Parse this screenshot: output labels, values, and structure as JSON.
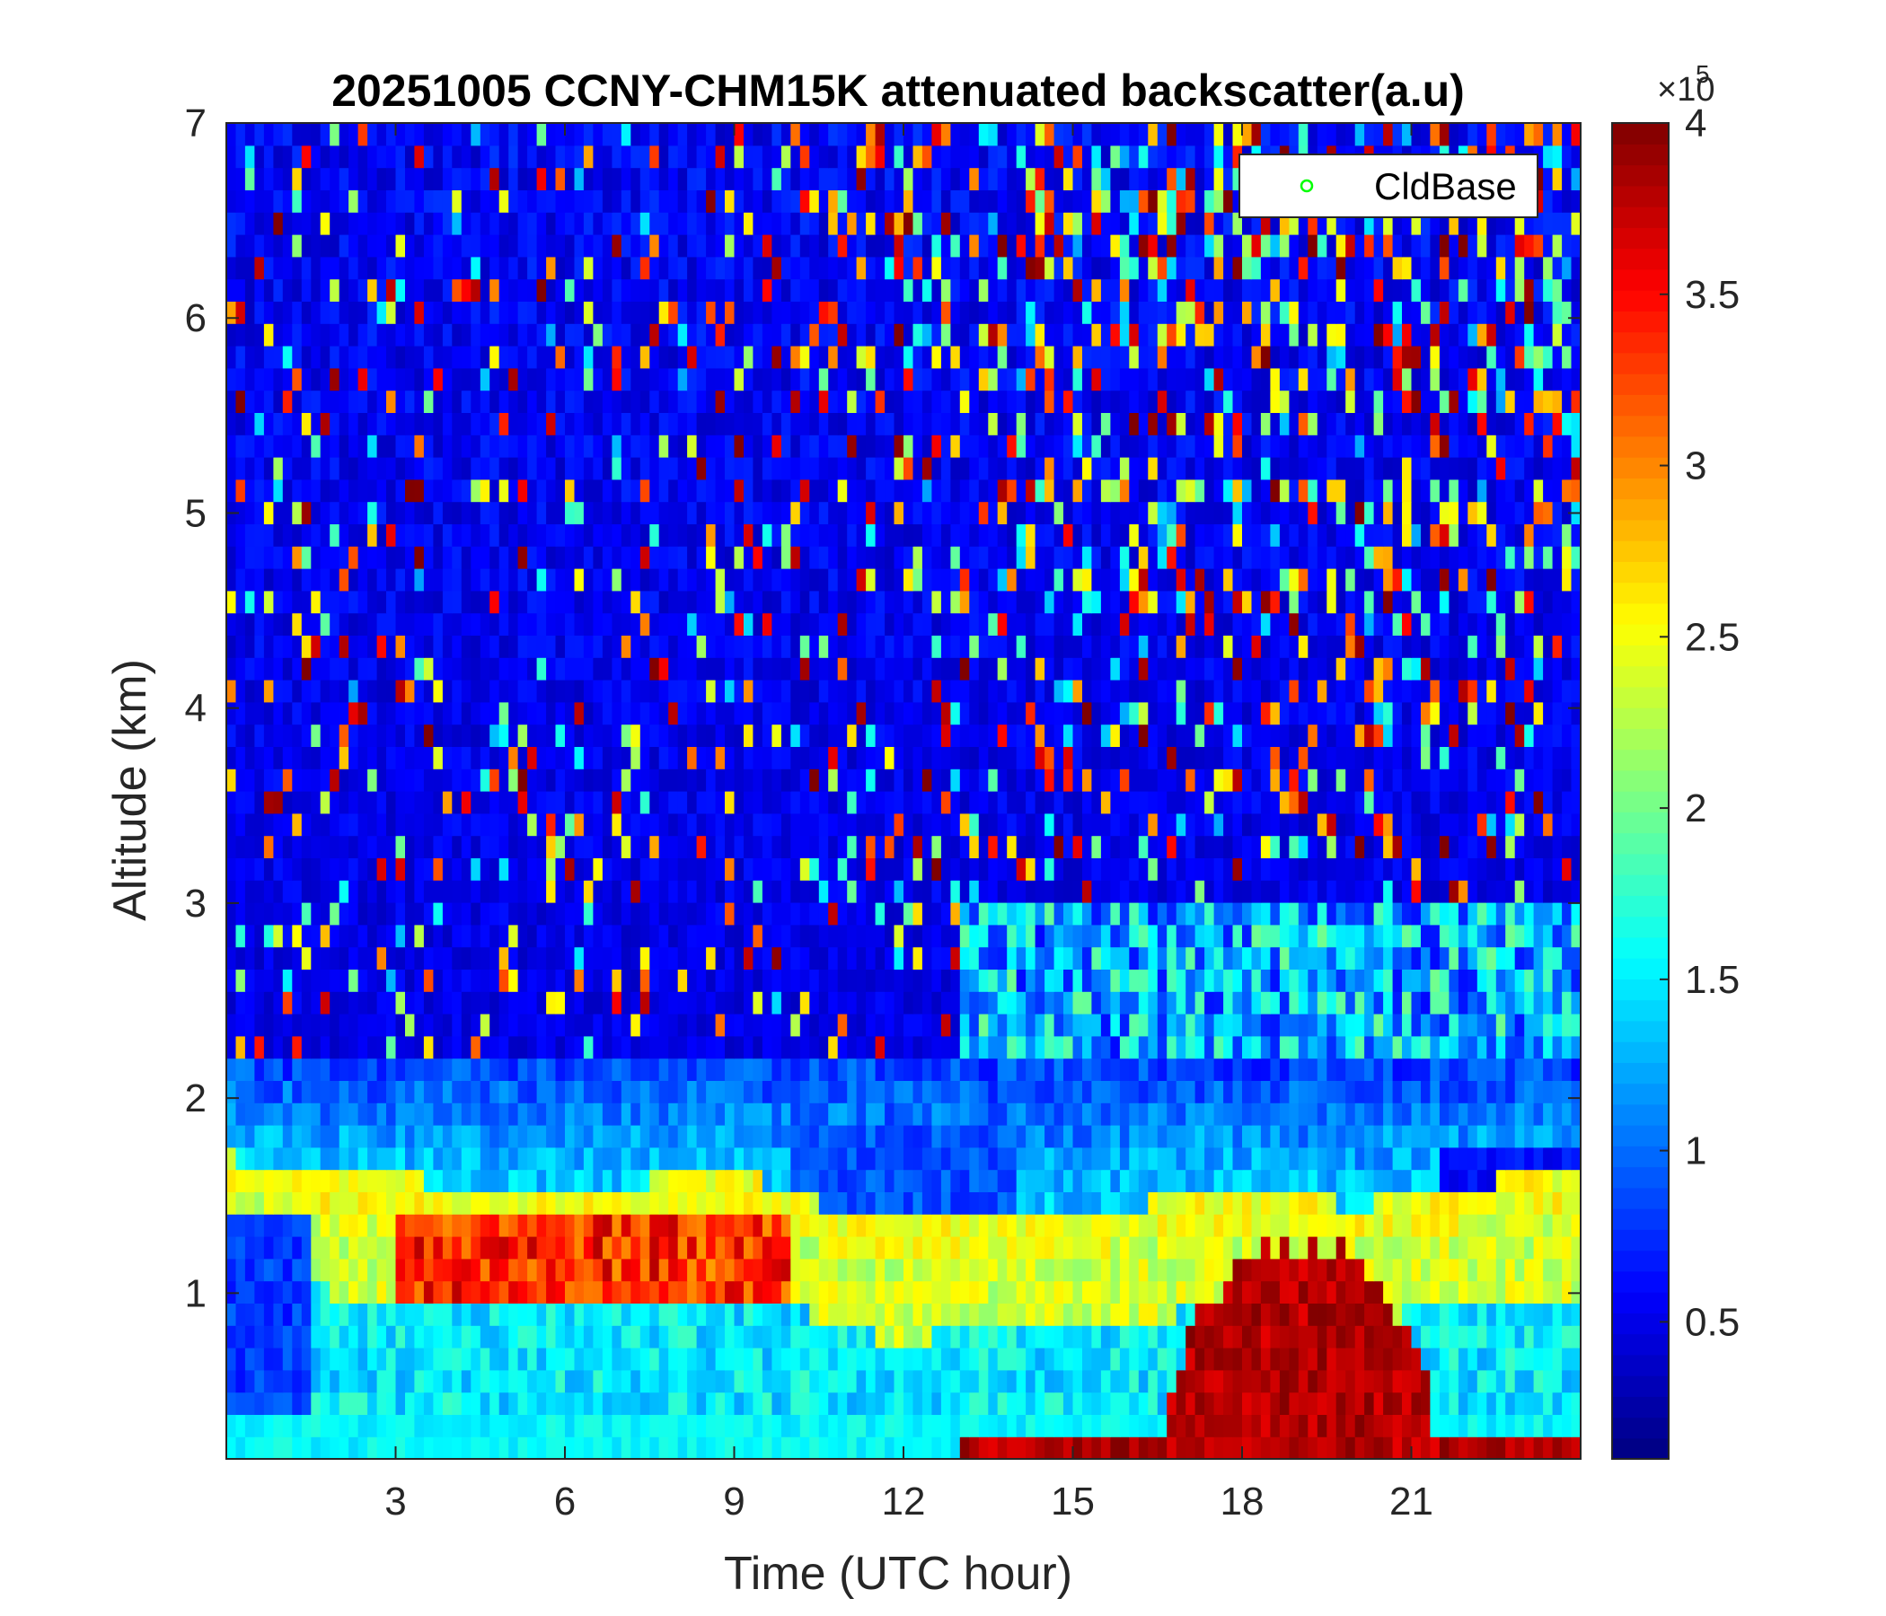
{
  "chart_data": {
    "type": "heatmap",
    "title": "20251005 CCNY-CHM15K attenuated backscatter(a.u)",
    "xlabel": "Time (UTC hour)",
    "ylabel": "Altitude (km)",
    "xlim": [
      0,
      24
    ],
    "ylim": [
      0.15,
      7
    ],
    "xticks": [
      3,
      6,
      9,
      12,
      15,
      18,
      21
    ],
    "xtick_labels": [
      "3",
      "6",
      "9",
      "12",
      "15",
      "18",
      "21"
    ],
    "yticks": [
      1,
      2,
      3,
      4,
      5,
      6,
      7
    ],
    "ytick_labels": [
      "1",
      "2",
      "3",
      "4",
      "5",
      "6",
      "7"
    ],
    "colorbar": {
      "colormap": "jet",
      "clim": [
        0.1,
        4.0
      ],
      "ticks": [
        0.5,
        1,
        1.5,
        2,
        2.5,
        3,
        3.5,
        4
      ],
      "tick_labels": [
        "0.5",
        "1",
        "1.5",
        "2",
        "2.5",
        "3",
        "3.5",
        "4"
      ],
      "exponent_base": "×10",
      "exponent_power": "5"
    },
    "legend": {
      "placement": "top-right",
      "entries": [
        {
          "name": "CldBase",
          "marker": "circle",
          "color": "#00ff00"
        }
      ]
    },
    "features": {
      "residual_layer_top_km": [
        [
          0,
          1.7
        ],
        [
          1,
          1.65
        ],
        [
          2,
          1.6
        ],
        [
          3,
          1.6
        ],
        [
          4,
          1.55
        ],
        [
          5,
          1.55
        ],
        [
          6,
          1.55
        ],
        [
          7,
          1.55
        ],
        [
          8,
          1.6
        ],
        [
          9,
          1.6
        ],
        [
          10,
          1.55
        ],
        [
          11,
          1.4
        ],
        [
          12,
          1.35
        ],
        [
          13,
          1.4
        ],
        [
          14,
          1.4
        ],
        [
          15,
          1.4
        ],
        [
          16,
          1.45
        ],
        [
          17,
          1.5
        ],
        [
          18,
          1.5
        ],
        [
          19,
          1.5
        ],
        [
          20,
          1.45
        ],
        [
          21,
          1.5
        ],
        [
          22,
          1.55
        ],
        [
          23,
          1.6
        ],
        [
          24,
          1.6
        ]
      ],
      "cloud_region": {
        "x_range": [
          16.5,
          21.5
        ],
        "top_km": 1.25,
        "value": 4.0
      }
    }
  }
}
